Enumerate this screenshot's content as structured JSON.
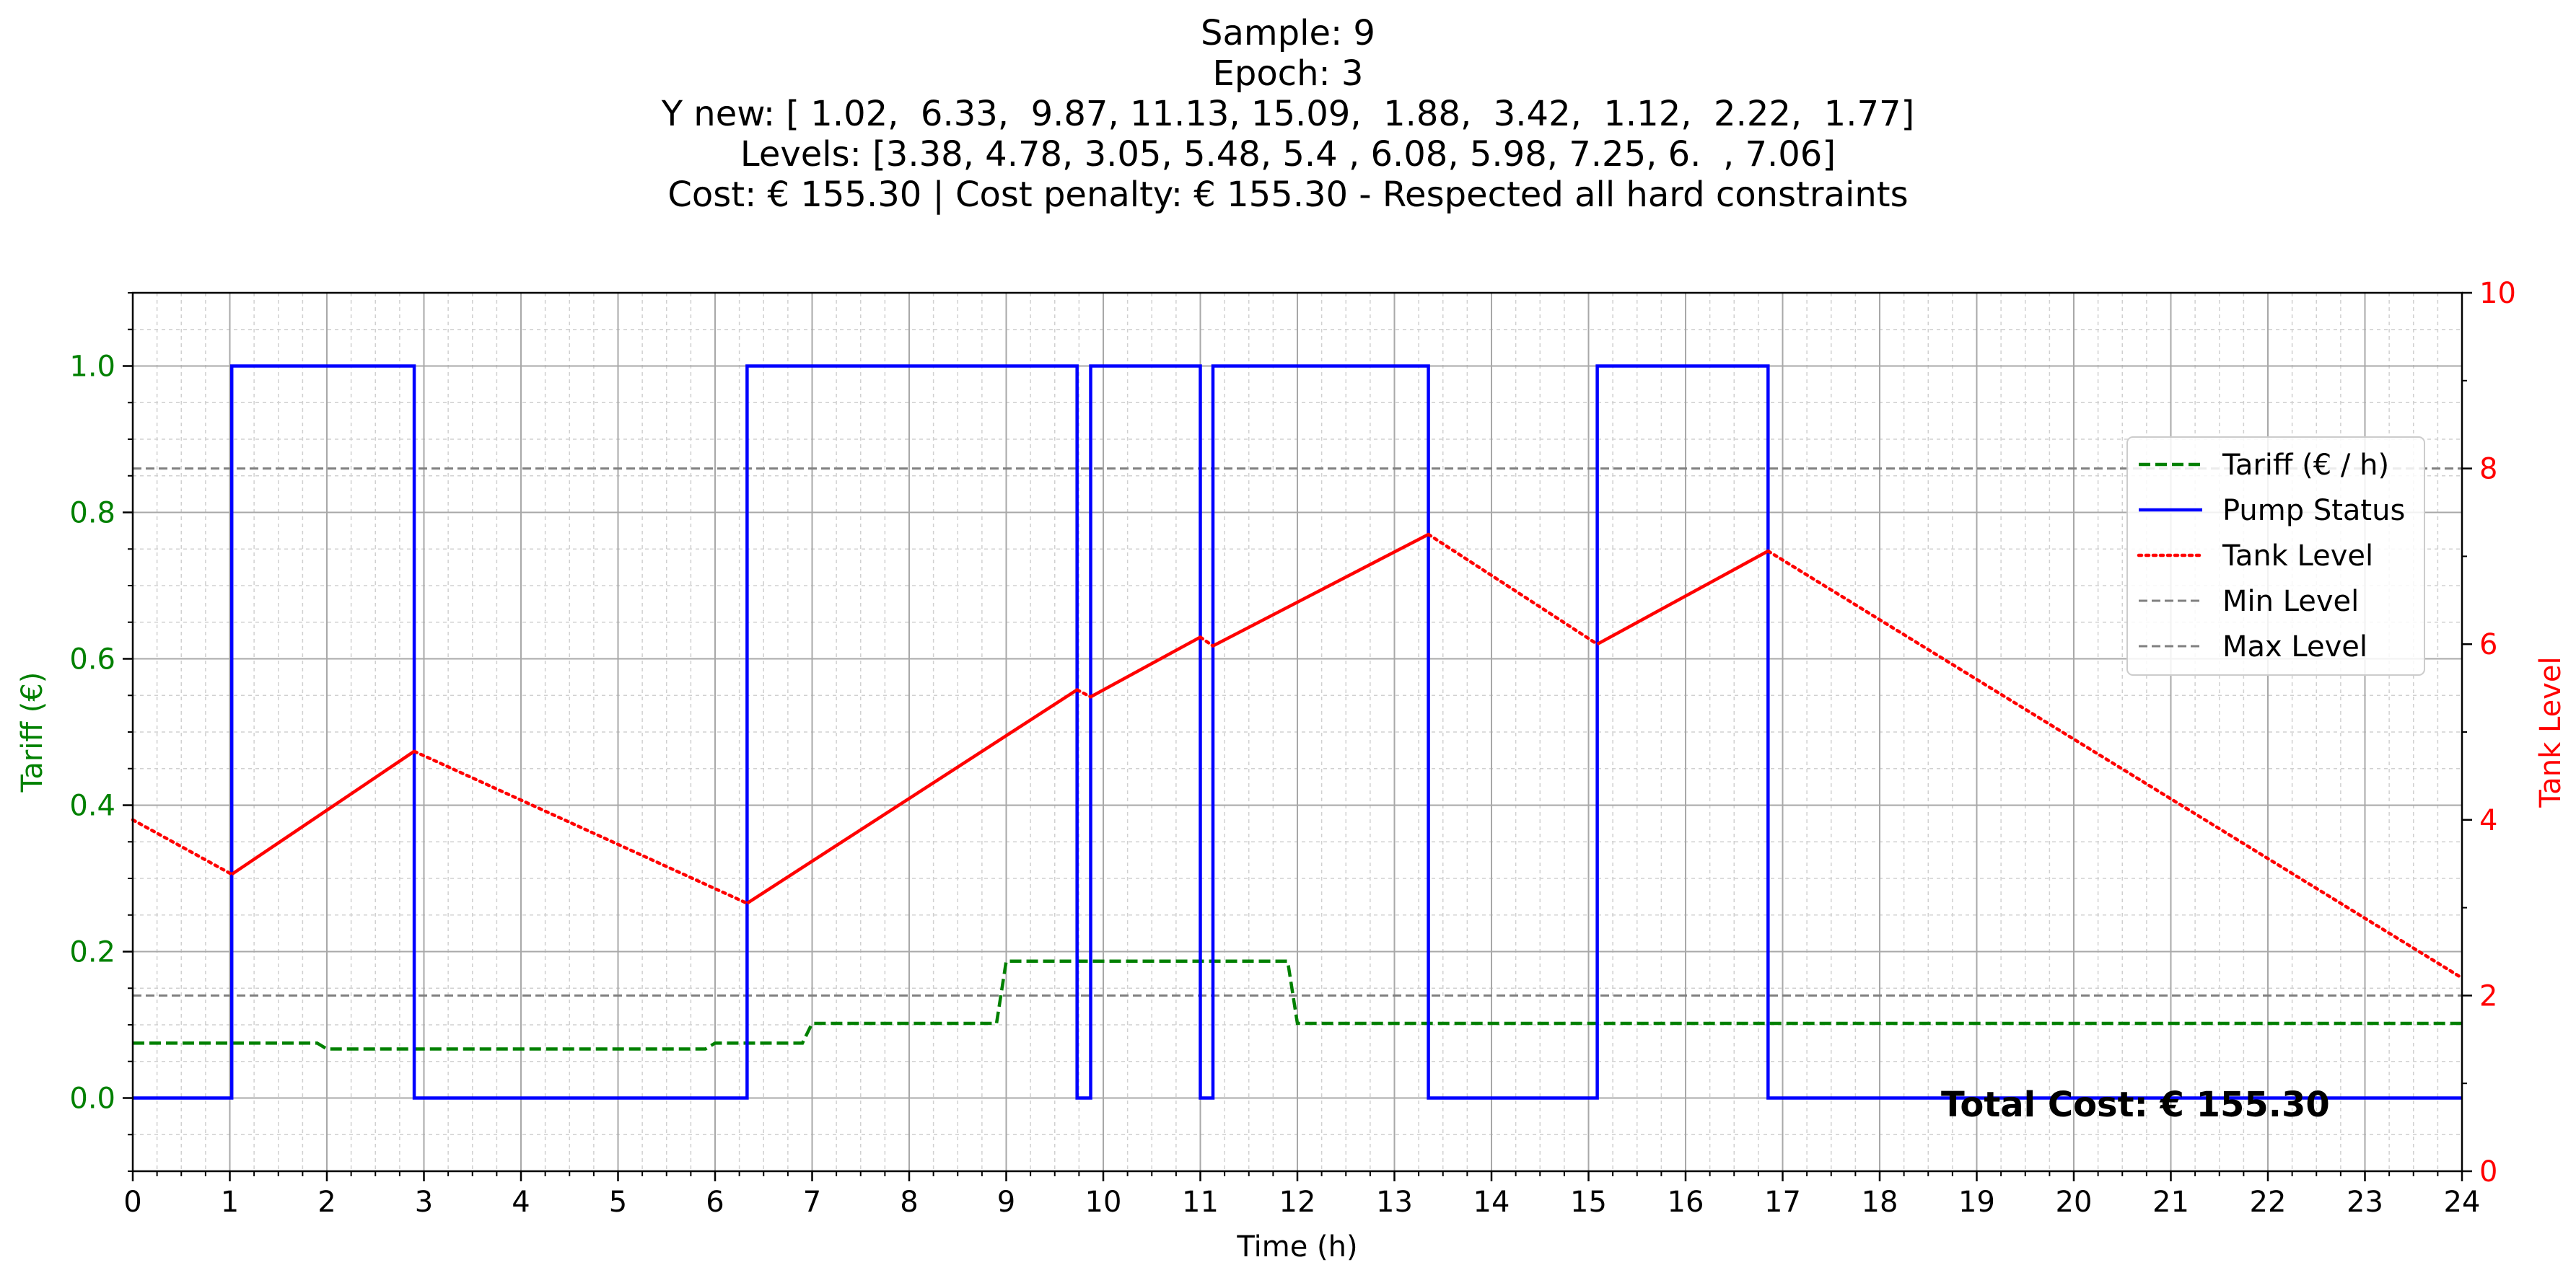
{
  "figure_title": {
    "lines": [
      "Sample: 9",
      "Epoch: 3",
      "Y new: [ 1.02,  6.33,  9.87, 11.13, 15.09,  1.88,  3.42,  1.12,  2.22,  1.77]",
      "Levels: [3.38, 4.78, 3.05, 5.48, 5.4 , 6.08, 5.98, 7.25, 6.  , 7.06]",
      "Cost: € 155.30 | Cost penalty: € 155.30 - Respected all hard constraints"
    ]
  },
  "chart_data": {
    "type": "line",
    "xlabel": "Time (h)",
    "ylabel_left": "Tariff (€)",
    "ylabel_right": "Tank Level",
    "xlim": [
      0,
      24
    ],
    "ylim_left": [
      -0.1,
      1.1
    ],
    "ylim_right": [
      0,
      10
    ],
    "x_ticks": [
      "0",
      "1",
      "2",
      "3",
      "4",
      "5",
      "6",
      "7",
      "8",
      "9",
      "10",
      "11",
      "12",
      "13",
      "14",
      "15",
      "16",
      "17",
      "18",
      "19",
      "20",
      "21",
      "22",
      "23",
      "24"
    ],
    "y_left_ticks": [
      "0.0",
      "0.2",
      "0.4",
      "0.6",
      "0.8",
      "1.0"
    ],
    "y_right_ticks": [
      "0",
      "2",
      "4",
      "6",
      "8",
      "10"
    ],
    "grid": true,
    "legend_position": "upper right",
    "annotation": "Total Cost: € 155.30",
    "colors": {
      "tariff": "#008000",
      "pump": "#0000ff",
      "tank": "#ff0000",
      "limits": "#808080",
      "left_axis": "#008000",
      "right_axis": "#ff0000"
    },
    "series": [
      {
        "name": "Tariff (€ / h)",
        "axis": "left",
        "style": "dashed",
        "x": [
          0,
          1.9,
          2.0,
          5.9,
          6.0,
          6.9,
          7.0,
          8.9,
          9.0,
          11.9,
          12.0,
          24
        ],
        "y": [
          0.075,
          0.075,
          0.067,
          0.067,
          0.075,
          0.075,
          0.102,
          0.102,
          0.187,
          0.187,
          0.102,
          0.102
        ]
      },
      {
        "name": "Pump Status",
        "axis": "left",
        "style": "step",
        "x": [
          0,
          1.02,
          1.02,
          2.9,
          2.9,
          6.33,
          6.33,
          9.73,
          9.73,
          9.87,
          9.87,
          11.0,
          11.0,
          11.13,
          11.13,
          13.35,
          13.35,
          15.09,
          15.09,
          16.85,
          16.85,
          24
        ],
        "y": [
          0,
          0,
          1,
          1,
          0,
          0,
          1,
          1,
          0,
          0,
          1,
          1,
          0,
          0,
          1,
          1,
          0,
          0,
          1,
          1,
          0,
          0
        ]
      },
      {
        "name": "Tank Level",
        "axis": "right",
        "style": "dotted",
        "x": [
          0,
          1.02,
          2.9,
          6.33,
          9.73,
          9.87,
          11.0,
          11.13,
          13.35,
          15.09,
          16.85,
          24
        ],
        "y": [
          4.0,
          3.38,
          4.78,
          3.05,
          5.48,
          5.4,
          6.08,
          5.98,
          7.25,
          6.0,
          7.06,
          2.2
        ],
        "pumping_segments": [
          [
            1.02,
            2.9
          ],
          [
            6.33,
            9.73
          ],
          [
            9.87,
            11.0
          ],
          [
            11.13,
            13.35
          ],
          [
            15.09,
            16.85
          ]
        ]
      },
      {
        "name": "Min Level",
        "axis": "right",
        "style": "dashed",
        "y": 2
      },
      {
        "name": "Max Level",
        "axis": "right",
        "style": "dashed",
        "y": 8
      }
    ]
  }
}
